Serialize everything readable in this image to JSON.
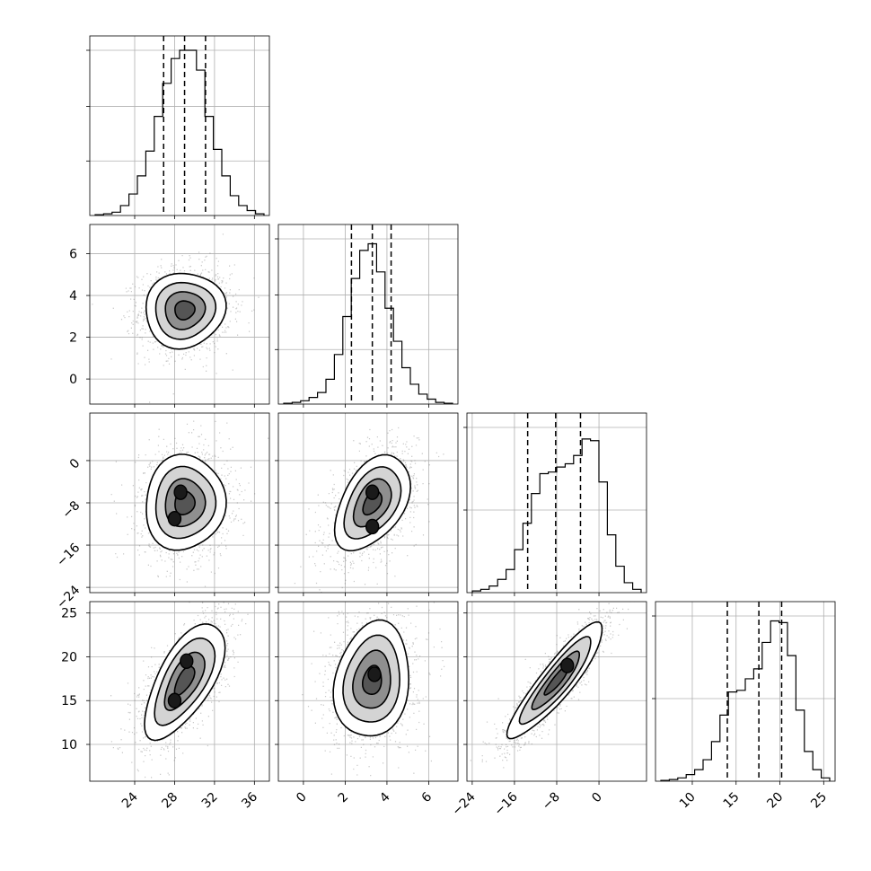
{
  "chart_data": {
    "type": "corner",
    "grid": true,
    "parameters": [
      {
        "range": [
          19.5,
          37.5
        ],
        "ticks": [
          24,
          28,
          32,
          36
        ],
        "tick_labels": [
          "24",
          "28",
          "32",
          "36"
        ],
        "quantiles": [
          26.9,
          29.0,
          31.1
        ],
        "mean": 29.0,
        "sd": 2.0
      },
      {
        "range": [
          -1.2,
          7.4
        ],
        "ticks": [
          0,
          2,
          4,
          6
        ],
        "tick_labels": [
          "0",
          "2",
          "4",
          "6"
        ],
        "quantiles": [
          2.3,
          3.3,
          4.2
        ],
        "mean": 3.3,
        "sd": 0.9
      },
      {
        "range": [
          -25.0,
          9.0
        ],
        "ticks": [
          -24,
          -16,
          -8,
          0
        ],
        "tick_labels": [
          "−24",
          "−16",
          "−8",
          "0"
        ],
        "quantiles": [
          -13.5,
          -8.2,
          -3.5
        ],
        "mean": -8.0,
        "sd": 4.5
      },
      {
        "range": [
          5.8,
          26.3
        ],
        "ticks": [
          10,
          15,
          20,
          25
        ],
        "tick_labels": [
          "10",
          "15",
          "20",
          "25"
        ],
        "quantiles": [
          14.0,
          17.6,
          20.2
        ],
        "mean": 17.3,
        "sd": 3.3
      }
    ],
    "hist_y_ticks": [
      [
        0.33,
        0.66,
        1.0
      ],
      [
        0.33,
        0.66,
        1.0
      ],
      [
        0.5,
        1.0
      ],
      [
        0.5,
        1.0
      ]
    ],
    "histograms": [
      [
        0.005,
        0.01,
        0.02,
        0.06,
        0.13,
        0.24,
        0.39,
        0.6,
        0.8,
        0.95,
        1.0,
        1.0,
        0.88,
        0.6,
        0.4,
        0.24,
        0.12,
        0.06,
        0.03,
        0.01
      ],
      [
        0.005,
        0.01,
        0.02,
        0.04,
        0.07,
        0.15,
        0.3,
        0.53,
        0.76,
        0.93,
        0.97,
        0.8,
        0.58,
        0.38,
        0.22,
        0.12,
        0.06,
        0.03,
        0.01,
        0.005
      ],
      [
        0.01,
        0.02,
        0.04,
        0.08,
        0.14,
        0.26,
        0.42,
        0.6,
        0.72,
        0.73,
        0.76,
        0.78,
        0.83,
        0.93,
        0.92,
        0.67,
        0.35,
        0.16,
        0.06,
        0.02
      ],
      [
        0.005,
        0.01,
        0.02,
        0.04,
        0.07,
        0.13,
        0.24,
        0.4,
        0.54,
        0.55,
        0.62,
        0.68,
        0.84,
        0.97,
        0.96,
        0.76,
        0.43,
        0.18,
        0.07,
        0.02
      ]
    ],
    "contour_pairs": [
      {
        "row": 1,
        "col": 0,
        "rho": 0.05,
        "blobs": []
      },
      {
        "row": 2,
        "col": 0,
        "rho": 0.05,
        "blobs": [
          [
            28.6,
            -6.0
          ],
          [
            28.0,
            -11.0
          ]
        ]
      },
      {
        "row": 2,
        "col": 1,
        "rho": 0.45,
        "blobs": [
          [
            3.3,
            -6.0
          ],
          [
            3.3,
            -12.5
          ]
        ]
      },
      {
        "row": 3,
        "col": 0,
        "rho": 0.65,
        "blobs": [
          [
            29.2,
            19.5
          ],
          [
            28.0,
            15.0
          ]
        ]
      },
      {
        "row": 3,
        "col": 1,
        "rho": 0.15,
        "blobs": [
          [
            3.4,
            18.0
          ]
        ]
      },
      {
        "row": 3,
        "col": 2,
        "rho": 0.9,
        "blobs": [
          [
            -6.0,
            19.0
          ]
        ]
      }
    ]
  }
}
